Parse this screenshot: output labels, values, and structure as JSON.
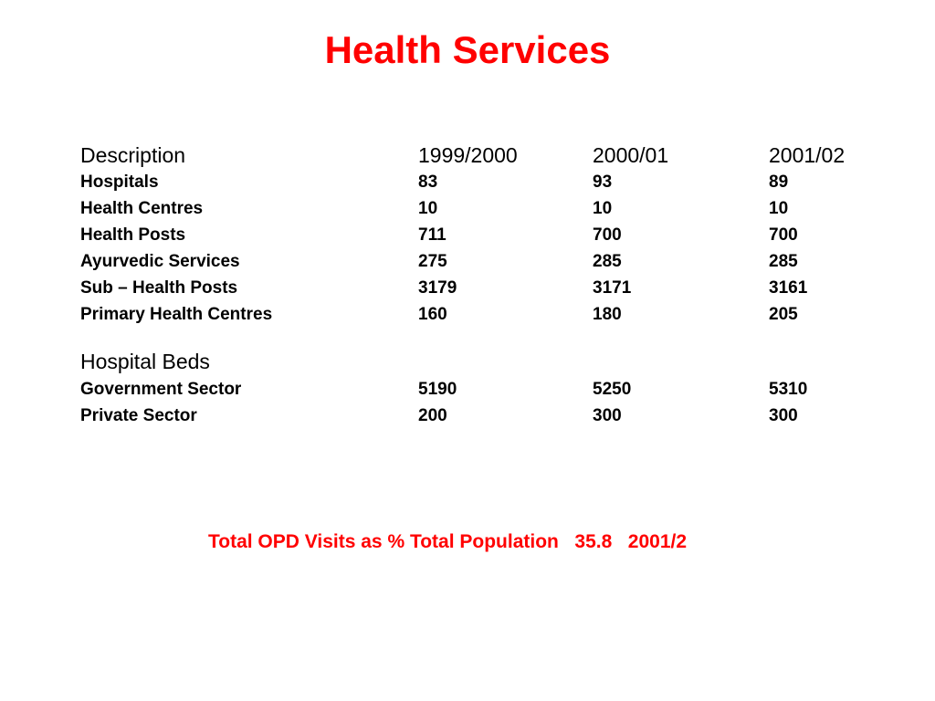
{
  "slide": {
    "title": "Health Services",
    "title_color": "#ff0000"
  },
  "table": {
    "columns": [
      "Description",
      "1999/2000",
      "2000/01",
      "2001/02"
    ],
    "facilities": [
      [
        "Hospitals",
        "83",
        "93",
        "89"
      ],
      [
        "Health Centres",
        "10",
        "10",
        "10"
      ],
      [
        "Health Posts",
        "711",
        "700",
        "700"
      ],
      [
        "Ayurvedic Services",
        "275",
        "285",
        "285"
      ],
      [
        "Sub – Health Posts",
        "3179",
        "3171",
        "3161"
      ],
      [
        "Primary Health Centres",
        "160",
        "180",
        "205"
      ]
    ],
    "beds_heading": "Hospital Beds",
    "beds": [
      [
        "Government Sector",
        "5190",
        "5250",
        "5310"
      ],
      [
        "Private Sector",
        "200",
        "300",
        "300"
      ]
    ]
  },
  "footer": {
    "label": "Total OPD Visits as % Total Population",
    "value": "35.8",
    "year": "2001/2"
  }
}
